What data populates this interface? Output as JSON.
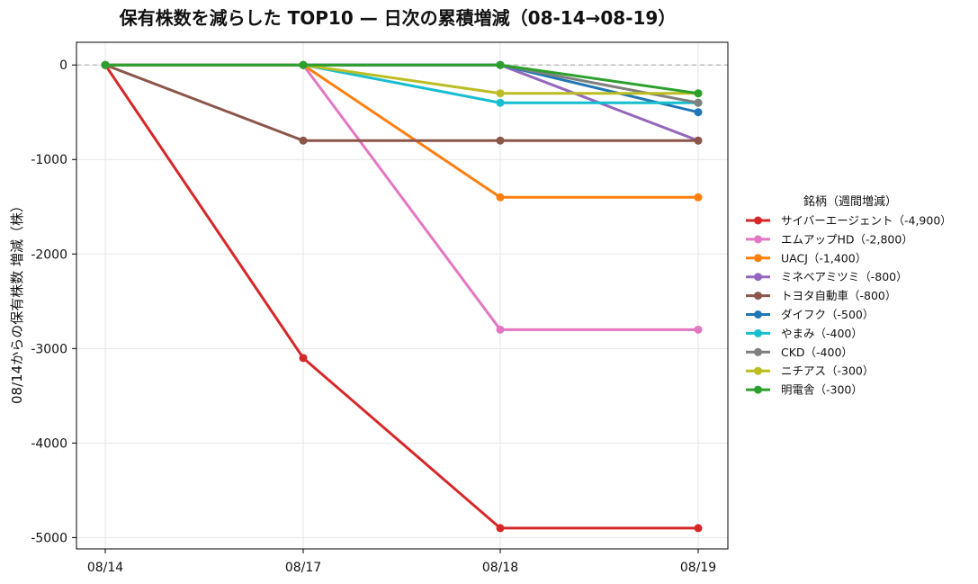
{
  "chart_data": {
    "type": "line",
    "title": "保有株数を減らした TOP10 — 日次の累積増減（08-14→08-19）",
    "xlabel": "",
    "ylabel": "08/14からの保有株数 増減（株）",
    "categories": [
      "08/14",
      "08/17",
      "08/18",
      "08/19"
    ],
    "ylim": [
      -5120,
      240
    ],
    "yticks": [
      0,
      -1000,
      -2000,
      -3000,
      -4000,
      -5000
    ],
    "grid": true,
    "zero_line": true,
    "legend": {
      "title": "銘柄（週間増減）",
      "placement": "right"
    },
    "series": [
      {
        "name": "サイバーエージェント（-4,900）",
        "color": "#d62728",
        "values": [
          0,
          -3100,
          -4900,
          -4900
        ]
      },
      {
        "name": "エムアップHD（-2,800）",
        "color": "#e377c2",
        "values": [
          0,
          0,
          -2800,
          -2800
        ]
      },
      {
        "name": "UACJ（-1,400）",
        "color": "#ff7f0e",
        "values": [
          0,
          0,
          -1400,
          -1400
        ]
      },
      {
        "name": "ミネベアミツミ（-800）",
        "color": "#9467bd",
        "values": [
          0,
          0,
          0,
          -800
        ]
      },
      {
        "name": "トヨタ自動車（-800）",
        "color": "#8c564b",
        "values": [
          0,
          -800,
          -800,
          -800
        ]
      },
      {
        "name": "ダイフク（-500）",
        "color": "#1f77b4",
        "values": [
          0,
          0,
          0,
          -500
        ]
      },
      {
        "name": "やまみ（-400）",
        "color": "#17becf",
        "values": [
          0,
          0,
          -400,
          -400
        ]
      },
      {
        "name": "CKD（-400）",
        "color": "#7f7f7f",
        "values": [
          0,
          0,
          0,
          -400
        ]
      },
      {
        "name": "ニチアス（-300）",
        "color": "#bcbd22",
        "values": [
          0,
          0,
          -300,
          -300
        ]
      },
      {
        "name": "明電舎（-300）",
        "color": "#2ca02c",
        "values": [
          0,
          0,
          0,
          -300
        ]
      }
    ]
  }
}
